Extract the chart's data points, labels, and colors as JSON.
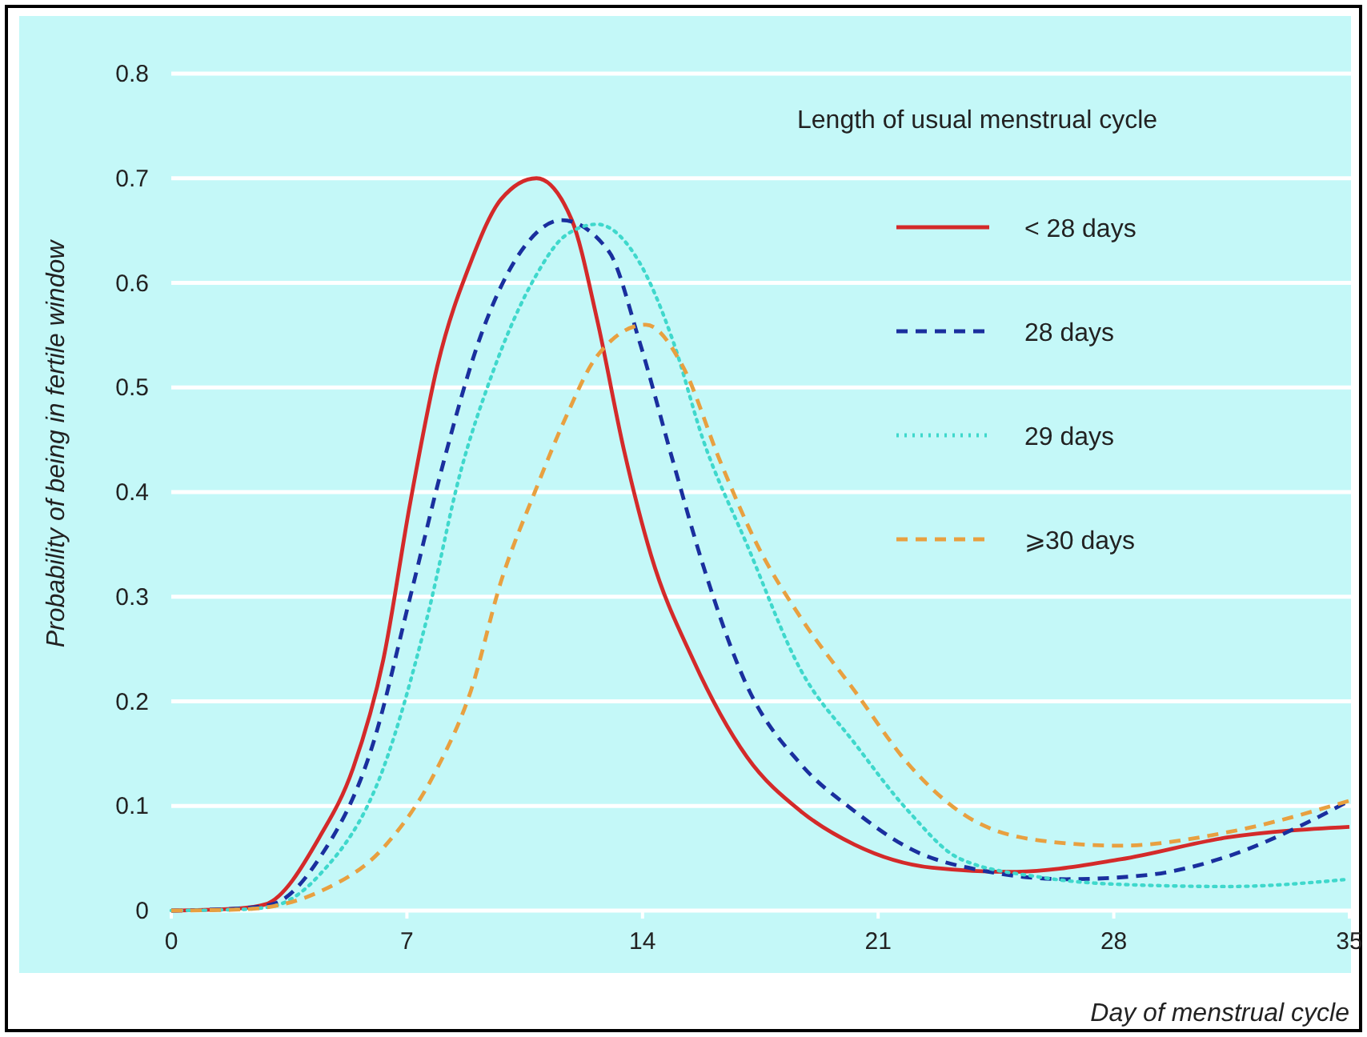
{
  "chart_data": {
    "type": "line",
    "xlabel": "Day of menstrual cycle",
    "ylabel": "Probability of being in fertile window",
    "legend_title": "Length of usual menstrual cycle",
    "legend": "top right",
    "grid": "y",
    "xlim": [
      0,
      35
    ],
    "xticks": [
      0,
      7,
      14,
      21,
      28,
      35
    ],
    "ylim": [
      0,
      0.8
    ],
    "yticks": [
      0,
      0.1,
      0.2,
      0.3,
      0.4,
      0.5,
      0.6,
      0.7,
      0.8
    ],
    "series": [
      {
        "name": "< 28 days",
        "color": "#d42a2a",
        "line_style": "solid",
        "x": [
          0,
          2,
          2.8,
          4.4,
          5.4,
          6.3,
          7.1,
          7.9,
          8.9,
          9.8,
          10.85,
          11.9,
          12.65,
          13.45,
          14.25,
          15.5,
          17.1,
          18.7,
          20.3,
          22.6,
          25,
          28.2,
          31.4,
          35
        ],
        "values": [
          0,
          0.002,
          0.006,
          0.07,
          0.136,
          0.24,
          0.39,
          0.52,
          0.62,
          0.68,
          0.7,
          0.66,
          0.565,
          0.44,
          0.34,
          0.24,
          0.147,
          0.095,
          0.063,
          0.041,
          0.037,
          0.049,
          0.07,
          0.08
        ]
      },
      {
        "name": "28 days",
        "color": "#1a2f9e",
        "line_style": "dashed",
        "x": [
          0,
          2,
          3,
          4.4,
          6,
          7.1,
          8.1,
          9.2,
          10.5,
          11.6,
          13,
          13.9,
          14.9,
          15.8,
          17.1,
          18.7,
          20.3,
          21.9,
          24.3,
          26.6,
          29,
          31.4,
          33.8,
          35
        ],
        "values": [
          0,
          0.002,
          0.006,
          0.05,
          0.16,
          0.3,
          0.43,
          0.55,
          0.635,
          0.66,
          0.63,
          0.545,
          0.43,
          0.33,
          0.215,
          0.14,
          0.095,
          0.06,
          0.037,
          0.03,
          0.034,
          0.052,
          0.085,
          0.105
        ]
      },
      {
        "name": "29 days",
        "color": "#3fd8cc",
        "line_style": "dotted",
        "x": [
          0,
          2,
          3,
          4.4,
          6.3,
          7.6,
          8.6,
          9.5,
          10.8,
          11.7,
          12.65,
          13.9,
          14.9,
          15.8,
          17.1,
          18.7,
          20.3,
          21.9,
          23.4,
          25.8,
          28.2,
          31.4,
          35
        ],
        "values": [
          0,
          0.001,
          0.004,
          0.034,
          0.136,
          0.28,
          0.42,
          0.51,
          0.605,
          0.645,
          0.656,
          0.62,
          0.545,
          0.45,
          0.35,
          0.23,
          0.16,
          0.095,
          0.05,
          0.032,
          0.025,
          0.023,
          0.03
        ]
      },
      {
        "name": "⩾30 days",
        "color": "#e8a040",
        "line_style": "dashed",
        "x": [
          0,
          2,
          3,
          4.4,
          6.3,
          7.9,
          8.9,
          9.8,
          10.8,
          11.7,
          12.65,
          14.1,
          15.2,
          16.3,
          17.4,
          18.7,
          20.3,
          21.9,
          23.4,
          25.8,
          28.2,
          31.4,
          35
        ],
        "values": [
          0,
          0.001,
          0.004,
          0.018,
          0.06,
          0.136,
          0.21,
          0.315,
          0.4,
          0.47,
          0.53,
          0.56,
          0.52,
          0.43,
          0.35,
          0.28,
          0.21,
          0.14,
          0.095,
          0.067,
          0.062,
          0.075,
          0.105
        ]
      }
    ]
  }
}
